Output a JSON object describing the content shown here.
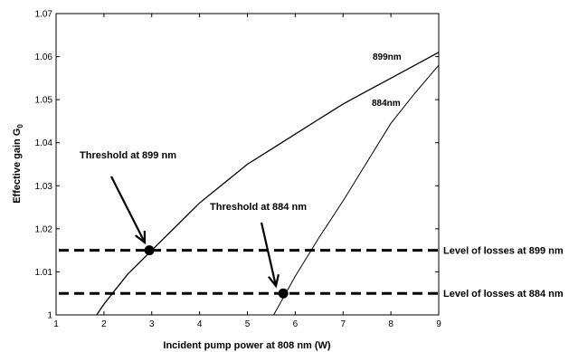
{
  "chart_data": {
    "type": "line",
    "xlabel": "Incident pump power at 808 nm (W)",
    "ylabel": "Effective gain G",
    "ylabel_sub": "0",
    "xlim": [
      1,
      9
    ],
    "ylim": [
      1,
      1.07
    ],
    "xticks": [
      1,
      2,
      3,
      4,
      5,
      6,
      7,
      8,
      9
    ],
    "yticks": [
      1,
      1.01,
      1.02,
      1.03,
      1.04,
      1.05,
      1.06,
      1.07
    ],
    "grid": false,
    "series": [
      {
        "name": "899nm",
        "x": [
          1.85,
          2.0,
          2.5,
          3.0,
          3.5,
          4.0,
          4.5,
          5.0,
          5.5,
          6.0,
          6.5,
          7.0,
          7.5,
          8.0,
          8.5,
          9.0
        ],
        "y": [
          1.0,
          1.0025,
          1.0095,
          1.015,
          1.0205,
          1.026,
          1.0305,
          1.035,
          1.0385,
          1.042,
          1.0455,
          1.049,
          1.052,
          1.055,
          1.058,
          1.061
        ]
      },
      {
        "name": "884nm",
        "x": [
          5.55,
          5.7,
          6.0,
          6.5,
          7.0,
          7.5,
          8.0,
          8.5,
          9.0
        ],
        "y": [
          1.0,
          1.003,
          1.009,
          1.018,
          1.0265,
          1.0355,
          1.0445,
          1.0515,
          1.058
        ]
      }
    ],
    "reference_lines": [
      {
        "label": "Level of losses at 899 nm",
        "y": 1.015
      },
      {
        "label": "Level of losses at 884 nm",
        "y": 1.005
      }
    ],
    "points": [
      {
        "label": "Threshold at 899 nm",
        "x": 2.95,
        "y": 1.015
      },
      {
        "label": "Threshold at 884 nm",
        "x": 5.75,
        "y": 1.005
      }
    ]
  }
}
